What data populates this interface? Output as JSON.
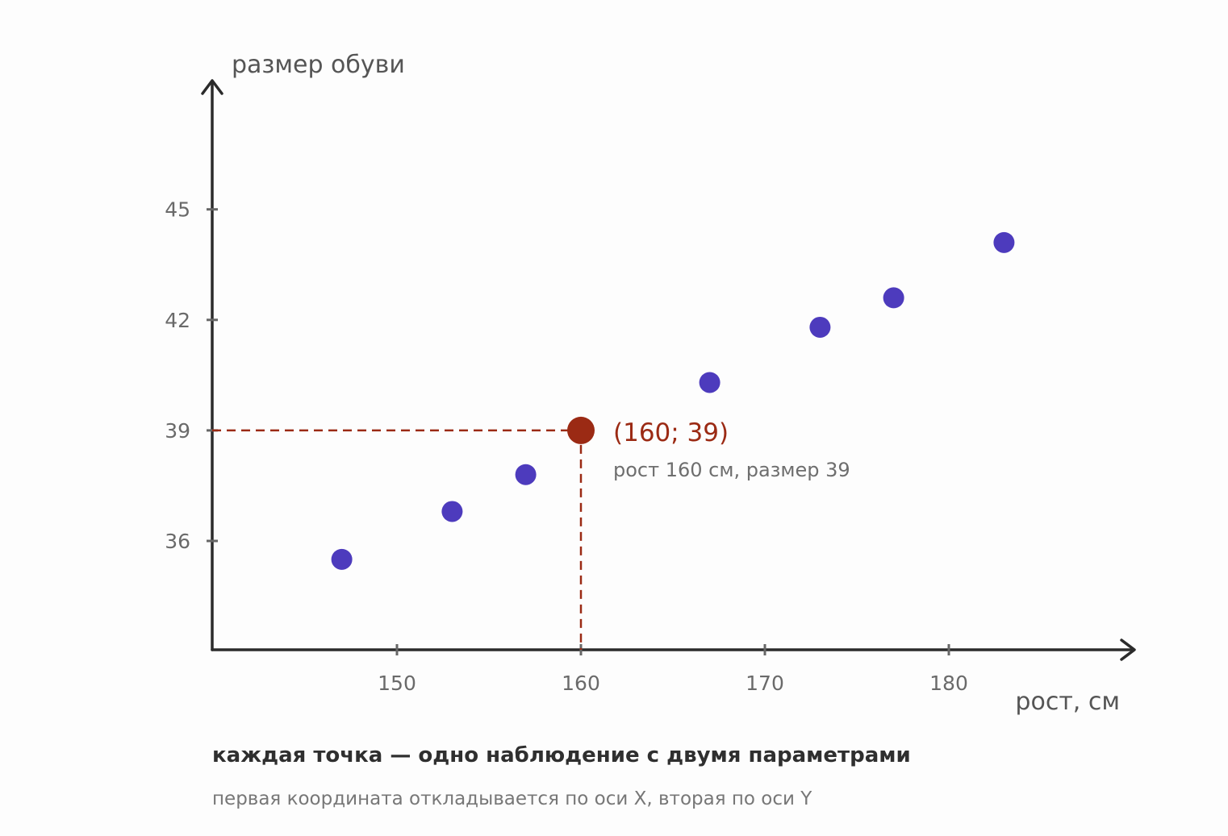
{
  "chart_data": {
    "type": "scatter",
    "xlabel": "рост, см",
    "ylabel": "размер обуви",
    "x_ticks": [
      150,
      160,
      170,
      180
    ],
    "y_ticks": [
      36,
      39,
      42,
      45
    ],
    "xlim": [
      140,
      190
    ],
    "ylim": [
      33,
      49
    ],
    "grid": false,
    "legend": "none",
    "series": [
      {
        "points": [
          {
            "x": 147,
            "y": 35.5
          },
          {
            "x": 153,
            "y": 36.8
          },
          {
            "x": 157,
            "y": 37.8
          },
          {
            "x": 167,
            "y": 40.3
          },
          {
            "x": 173,
            "y": 41.8
          },
          {
            "x": 177,
            "y": 42.6
          },
          {
            "x": 183,
            "y": 44.1
          }
        ],
        "color": "#4d3bbd"
      }
    ],
    "highlight": {
      "x": 160,
      "y": 39,
      "label": "(160; 39)",
      "note": "рост 160 см, размер 39",
      "color": "#9b2a14"
    },
    "colors": {
      "axis": "#2b2b2b",
      "tick_label": "#6a6a6a",
      "axis_label": "#555555"
    }
  },
  "caption": {
    "title": "каждая точка — одно наблюдение с двумя параметрами",
    "subtitle": "первая координата откладывается по оси X, вторая по оси Y"
  }
}
